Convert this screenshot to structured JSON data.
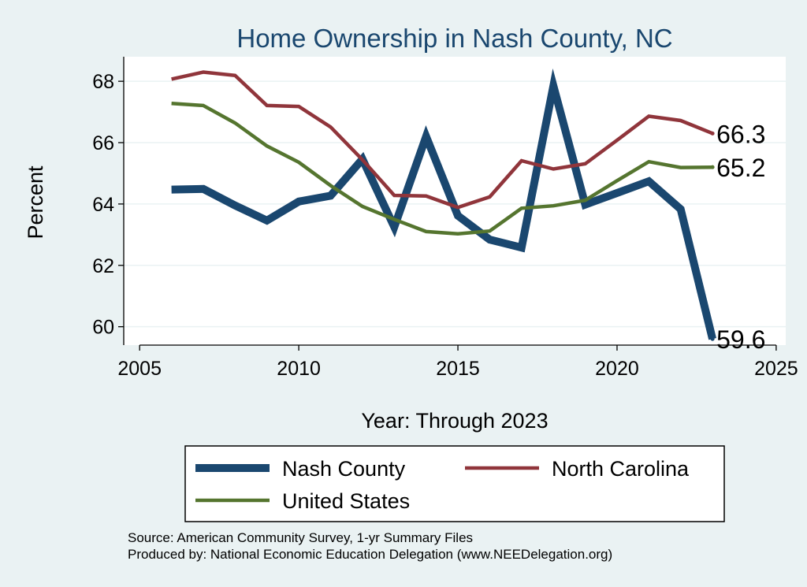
{
  "chart_data": {
    "type": "line",
    "title": "Home Ownership in Nash County, NC",
    "xlabel": "Year: Through 2023",
    "ylabel": "Percent",
    "xlim": [
      2004.5,
      2025.3
    ],
    "ylim": [
      59.4,
      68.8
    ],
    "xticks": [
      2005,
      2010,
      2015,
      2020,
      2025
    ],
    "yticks": [
      60,
      62,
      64,
      66,
      68
    ],
    "x": [
      2006,
      2007,
      2008,
      2009,
      2010,
      2011,
      2012,
      2013,
      2014,
      2015,
      2016,
      2017,
      2018,
      2019,
      2020,
      2021,
      2022,
      2023
    ],
    "series": [
      {
        "name": "Nash County",
        "color": "#1a476f",
        "values": [
          64.47,
          64.49,
          63.95,
          63.46,
          64.08,
          64.27,
          65.46,
          63.25,
          66.2,
          63.62,
          62.84,
          62.58,
          67.85,
          63.98,
          64.36,
          64.74,
          63.83,
          59.6
        ],
        "end_label": "59.6"
      },
      {
        "name": "North Carolina",
        "color": "#90353b",
        "values": [
          68.07,
          68.3,
          68.19,
          67.21,
          67.18,
          66.51,
          65.44,
          64.28,
          64.26,
          63.89,
          64.23,
          65.41,
          65.14,
          65.31,
          66.08,
          66.86,
          66.72,
          66.3
        ],
        "end_label": "66.3"
      },
      {
        "name": "United States",
        "color": "#55752f",
        "values": [
          67.28,
          67.21,
          66.64,
          65.89,
          65.36,
          64.6,
          63.92,
          63.5,
          63.1,
          63.03,
          63.12,
          63.86,
          63.94,
          64.12,
          64.76,
          65.38,
          65.19,
          65.2
        ],
        "end_label": "65.2"
      }
    ],
    "legend": {
      "position": "bottom",
      "columns": 2
    }
  },
  "footer": {
    "source": "Source: American Community Survey, 1-yr Summary Files",
    "producer": "Produced by: National Economic Education Delegation (www.NEEDelegation.org)"
  }
}
